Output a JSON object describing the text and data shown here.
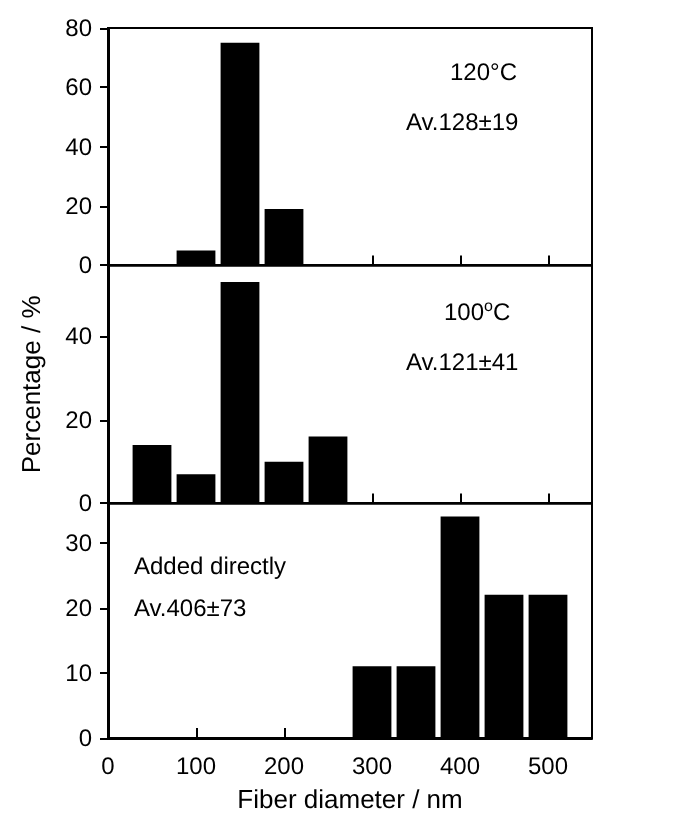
{
  "chart_data": [
    {
      "type": "histogram",
      "bins": [
        75,
        125,
        175,
        225
      ],
      "values": [
        5,
        75,
        19
      ],
      "color": "#000000",
      "xlim": [
        0,
        550
      ],
      "xticks": [
        0,
        100,
        200,
        300,
        400,
        500
      ],
      "ylim": [
        0,
        80
      ],
      "yticks": [
        0,
        20,
        40,
        60,
        80
      ],
      "tick_labels": "y",
      "grid": false,
      "annotations": [
        "120°C",
        "Av.128±19"
      ]
    },
    {
      "type": "histogram",
      "bins": [
        25,
        75,
        125,
        175,
        225,
        275
      ],
      "values": [
        14,
        7,
        53,
        10,
        16
      ],
      "color": "#000000",
      "xlim": [
        0,
        550
      ],
      "xticks": [
        0,
        100,
        200,
        300,
        400,
        500
      ],
      "ylim": [
        0,
        57
      ],
      "yticks": [
        0,
        20,
        40
      ],
      "tick_labels": "y",
      "grid": false,
      "ylabel": "Percentage / %",
      "annotations": [
        "100$^{o}$C",
        "Av.121±41"
      ]
    },
    {
      "type": "histogram",
      "bins": [
        275,
        325,
        375,
        425,
        475,
        525
      ],
      "values": [
        11,
        11,
        34,
        22,
        22
      ],
      "color": "#000000",
      "xlim": [
        0,
        550
      ],
      "xticks": [
        0,
        100,
        200,
        300,
        400,
        500
      ],
      "ylim": [
        0,
        36
      ],
      "yticks": [
        0,
        10,
        20,
        30
      ],
      "grid": false,
      "xlabel": "Fiber diameter / nm",
      "annotations": [
        "Added directly",
        "Av.406±73"
      ]
    }
  ]
}
